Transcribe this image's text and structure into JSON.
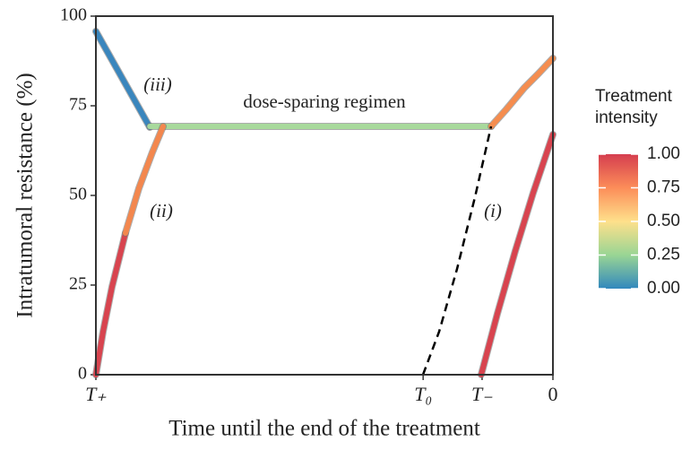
{
  "chart_data": {
    "type": "line",
    "xlabel": "Time until the end of the treatment",
    "ylabel": "Intratumoral resistance (%)",
    "xlim": [
      -100,
      0
    ],
    "ylim": [
      0,
      100
    ],
    "xticks": [
      {
        "value": -100,
        "label": "T₊"
      },
      {
        "value": -28.4,
        "label": "T₀"
      },
      {
        "value": -15.5,
        "label": "T₋"
      },
      0
    ],
    "yticks": [
      0,
      25,
      50,
      75,
      100
    ],
    "grid": false,
    "annotations": [
      "(iii)",
      "(ii)",
      "(i)",
      "dose-sparing regimen"
    ],
    "series": [
      {
        "color": "#3a86bd",
        "x": [
          -100,
          -88.2
        ],
        "values": [
          95.75,
          69
        ]
      },
      {
        "color": "#a8d99c",
        "x": [
          -88.2,
          -13.5
        ],
        "values": [
          69.25,
          69.25
        ]
      },
      {
        "color": "#d8444f",
        "x": [
          -100,
          -98.43,
          -96.47,
          -93.53
        ],
        "values": [
          0,
          12,
          24.5,
          39.5
        ]
      },
      {
        "color": "#f3874e",
        "x": [
          -93.53,
          -90.59,
          -87.65,
          -85.29
        ],
        "values": [
          39.5,
          52,
          62,
          69.25
        ]
      },
      {
        "color": "#f58d4f",
        "x": [
          -13.53,
          -10.2,
          -6.27,
          -3.33,
          0
        ],
        "values": [
          69.25,
          74,
          80,
          83.75,
          88.25
        ]
      },
      {
        "color": "#000000",
        "dashed": true,
        "x": [
          -28.43,
          -24.9,
          -20.98,
          -17.06,
          -13.53
        ],
        "values": [
          0,
          12,
          29.5,
          49.5,
          69.25
        ]
      },
      {
        "color": "#d8444f",
        "x": [
          -15.69,
          -12.16,
          -8.24,
          -4.31,
          0
        ],
        "values": [
          0,
          17,
          34.5,
          50.75,
          67
        ]
      }
    ],
    "colorbar": {
      "title": "Treatment intensity",
      "colors": [
        "#3288bd",
        "#99d594",
        "#fee08b",
        "#fc8d59",
        "#d53e4f"
      ],
      "lim": [
        0,
        1
      ],
      "ticks": [
        {
          "value": 0,
          "label": "0.00"
        },
        {
          "value": 0.25,
          "label": "0.25"
        },
        {
          "value": 0.5,
          "label": "0.50"
        },
        {
          "value": 0.75,
          "label": "0.75"
        },
        {
          "value": 1,
          "label": "1.00"
        }
      ]
    }
  }
}
